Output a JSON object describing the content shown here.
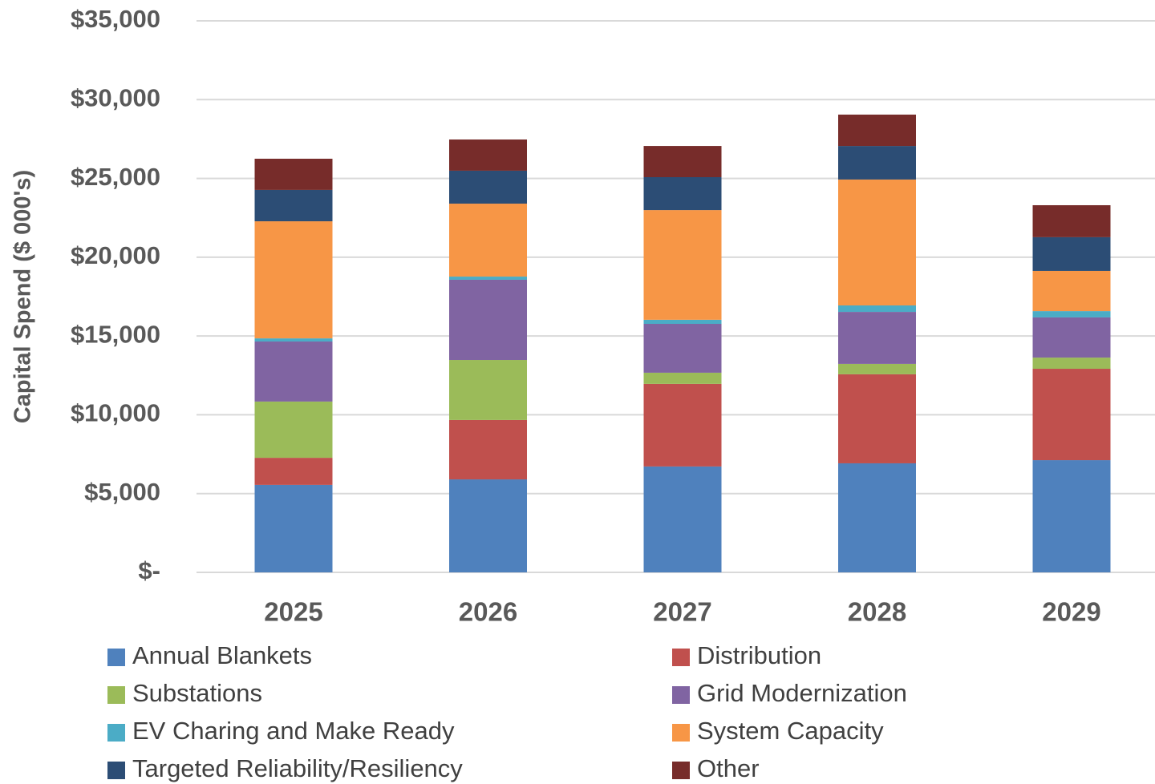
{
  "chart_data": {
    "type": "stacked_bar",
    "y_label": "Capital Spend ($ 000's)",
    "categories": [
      "2025",
      "2026",
      "2027",
      "2028",
      "2029"
    ],
    "series": [
      {
        "name": "Annual Blankets",
        "color": "#4f81bd",
        "values": [
          5550,
          5900,
          6720,
          6920,
          7120
        ]
      },
      {
        "name": "Distribution",
        "color": "#c0504d",
        "values": [
          1720,
          3770,
          5240,
          5650,
          5800
        ]
      },
      {
        "name": "Substations",
        "color": "#9bbb59",
        "values": [
          3570,
          3810,
          710,
          660,
          710
        ]
      },
      {
        "name": "Grid Modernization",
        "color": "#8064a2",
        "values": [
          3810,
          5090,
          3100,
          3300,
          2550
        ]
      },
      {
        "name": "EV Charing and Make Ready",
        "color": "#4bacc6",
        "values": [
          200,
          200,
          260,
          410,
          400
        ]
      },
      {
        "name": "System Capacity",
        "color": "#f79646",
        "values": [
          7430,
          4630,
          6960,
          7990,
          2550
        ]
      },
      {
        "name": "Targeted Reliability/Resiliency",
        "color": "#2c4d75",
        "values": [
          1990,
          2090,
          2090,
          2130,
          2140
        ]
      },
      {
        "name": "Other",
        "color": "#772c2a",
        "values": [
          1980,
          1980,
          1980,
          1990,
          2030
        ]
      }
    ],
    "ylim": [
      0,
      35000
    ],
    "yticks": [
      {
        "value": 0,
        "label": "$-"
      },
      {
        "value": 5000,
        "label": "$5,000"
      },
      {
        "value": 10000,
        "label": "$10,000"
      },
      {
        "value": 15000,
        "label": "$15,000"
      },
      {
        "value": 20000,
        "label": "$20,000"
      },
      {
        "value": 25000,
        "label": "$25,000"
      },
      {
        "value": 30000,
        "label": "$30,000"
      },
      {
        "value": 35000,
        "label": "$35,000"
      }
    ],
    "grid": true,
    "legend": "bottom"
  }
}
